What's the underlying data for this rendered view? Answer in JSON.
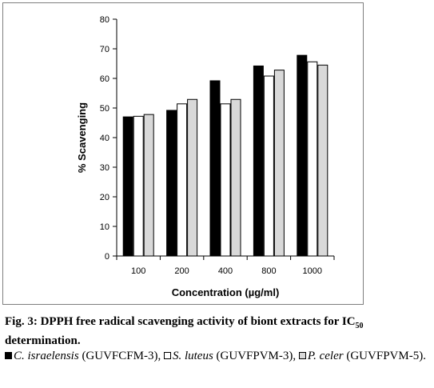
{
  "chart_data": {
    "type": "bar",
    "categories": [
      "100",
      "200",
      "400",
      "800",
      "1000"
    ],
    "series": [
      {
        "name": "C. israelensis (GUVFCFM-3)",
        "values": [
          47,
          49.2,
          59.2,
          64.2,
          67.8
        ],
        "color": "#000000"
      },
      {
        "name": "S. luteus (GUVFPVM-3)",
        "values": [
          47.2,
          51.4,
          51.4,
          60.8,
          65.6
        ],
        "color": "#ffffff"
      },
      {
        "name": "P. celer (GUVFPVM-5)",
        "values": [
          47.8,
          52.9,
          52.9,
          62.8,
          64.5
        ],
        "color": "#d9d9d9"
      }
    ],
    "xlabel": "Concentration (µg/ml)",
    "ylabel": "% Scavenging",
    "ylim": [
      0,
      80
    ],
    "yticks": [
      0,
      10,
      20,
      30,
      40,
      50,
      60,
      70,
      80
    ],
    "grid": false,
    "legend": "below chart in caption"
  },
  "caption": {
    "fig_label": "Fig. 3: DPPH free radical scavenging activity of biont extracts for IC",
    "fig_sub": "50",
    "fig_end": " determination.",
    "legend": [
      {
        "species": "C. israelensis",
        "code": " (GUVFCFM-3),",
        "swatch": "#000000"
      },
      {
        "species": "S. luteus",
        "code": " (GUVFPVM-3),",
        "swatch": "#ffffff"
      },
      {
        "species": "P. celer",
        "code": " (GUVFPVM-5).",
        "swatch": "#d9d9d9"
      }
    ]
  }
}
